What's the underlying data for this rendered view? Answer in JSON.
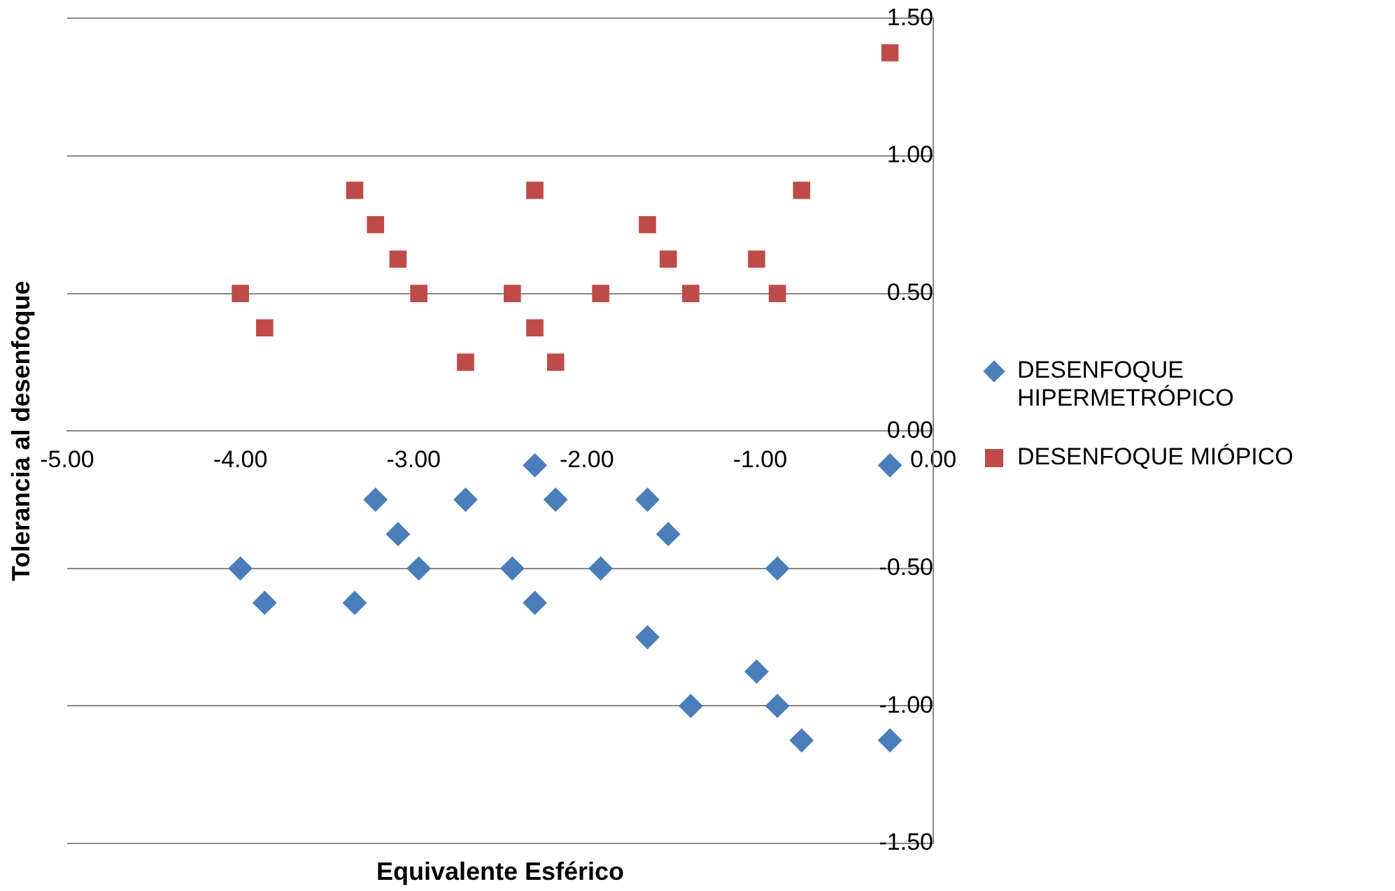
{
  "chart_data": {
    "type": "scatter",
    "xlabel": "Equivalente Esférico",
    "ylabel": "Tolerancia al desenfoque",
    "xlim": [
      -5,
      0
    ],
    "xticks": [
      {
        "value": -5,
        "label": "-5.00"
      },
      {
        "value": -4,
        "label": "-4.00"
      },
      {
        "value": -3,
        "label": "-3.00"
      },
      {
        "value": -2,
        "label": "-2.00"
      },
      {
        "value": -1,
        "label": "-1.00"
      },
      {
        "value": 0,
        "label": "0.00"
      }
    ],
    "ylim": [
      -1.5,
      1.5
    ],
    "yticks": [
      {
        "value": -1.5,
        "label": "-1.50"
      },
      {
        "value": -1,
        "label": "-1.00"
      },
      {
        "value": -0.5,
        "label": "-0.50"
      },
      {
        "value": 0,
        "label": "0.00"
      },
      {
        "value": 0.5,
        "label": "0.50"
      },
      {
        "value": 1,
        "label": "1.00"
      },
      {
        "value": 1.5,
        "label": "1.50"
      }
    ],
    "grid": "y",
    "legend": "right",
    "series": [
      {
        "name": "DESENFOQUE HIPERMETRÓPICO",
        "color": "#4a7ebb",
        "marker": "diamond",
        "x": [
          -4.0,
          -3.86,
          -3.34,
          -3.22,
          -3.09,
          -2.97,
          -2.7,
          -2.43,
          -2.3,
          -2.3,
          -2.18,
          -1.92,
          -1.65,
          -1.65,
          -1.53,
          -1.4,
          -1.02,
          -0.9,
          -0.9,
          -0.76,
          -0.25,
          -0.25
        ],
        "values": [
          -0.5,
          -0.625,
          -0.625,
          -0.25,
          -0.375,
          -0.5,
          -0.25,
          -0.5,
          -0.125,
          -0.625,
          -0.25,
          -0.5,
          -0.25,
          -0.75,
          -0.375,
          -1.0,
          -0.875,
          -0.5,
          -1.0,
          -1.125,
          -0.125,
          -1.125
        ]
      },
      {
        "name": "DESENFOQUE MIÓPICO",
        "color": "#be4b48",
        "marker": "square",
        "x": [
          -4.0,
          -3.86,
          -3.34,
          -3.22,
          -3.09,
          -2.97,
          -2.7,
          -2.43,
          -2.3,
          -2.3,
          -2.18,
          -1.92,
          -1.65,
          -1.53,
          -1.4,
          -1.02,
          -0.9,
          -0.76,
          -0.25
        ],
        "values": [
          0.5,
          0.375,
          0.875,
          0.75,
          0.625,
          0.5,
          0.25,
          0.5,
          0.875,
          0.375,
          0.25,
          0.5,
          0.75,
          0.625,
          0.5,
          0.625,
          0.5,
          0.875,
          1.375
        ]
      }
    ]
  }
}
